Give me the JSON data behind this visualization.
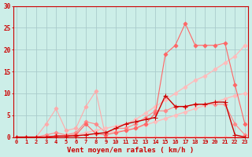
{
  "background_color": "#cceee8",
  "grid_color": "#aacccc",
  "xlabel": "Vent moyen/en rafales ( km/h )",
  "xlabel_color": "#cc0000",
  "tick_color": "#cc0000",
  "x_values": [
    0,
    1,
    2,
    3,
    4,
    5,
    6,
    7,
    8,
    9,
    10,
    11,
    12,
    13,
    14,
    15,
    16,
    17,
    18,
    19,
    20,
    21,
    22,
    23
  ],
  "ylim": [
    0,
    30
  ],
  "yticks": [
    0,
    5,
    10,
    15,
    20,
    25,
    30
  ],
  "series": [
    {
      "name": "line1_lightest",
      "color": "#ffaaaa",
      "lw": 0.8,
      "marker": "D",
      "markersize": 2.5,
      "values": [
        0,
        0,
        0,
        3,
        6.5,
        1.5,
        2,
        7,
        10.5,
        0,
        0,
        0,
        0,
        0,
        0,
        0,
        0,
        0,
        0,
        0,
        0,
        0,
        0,
        0
      ]
    },
    {
      "name": "line2_light_peak",
      "color": "#ff8888",
      "lw": 0.8,
      "marker": "D",
      "markersize": 2.5,
      "values": [
        0,
        0,
        0,
        0.5,
        1,
        0.5,
        1,
        3.5,
        3,
        1,
        2,
        2,
        3,
        4.5,
        6,
        6,
        7,
        7,
        7.5,
        7.5,
        7.5,
        7.5,
        3,
        0.5
      ]
    },
    {
      "name": "line3_trend_upper",
      "color": "#ffbbbb",
      "lw": 1.0,
      "marker": "D",
      "markersize": 2.5,
      "values": [
        0,
        0,
        0,
        0,
        0.2,
        0.3,
        0.5,
        1,
        1.5,
        2,
        2.5,
        3,
        4,
        5.5,
        7,
        8.5,
        10,
        11.5,
        13,
        14,
        15.5,
        17,
        18.5,
        21
      ]
    },
    {
      "name": "line4_trend_lower",
      "color": "#ffbbbb",
      "lw": 1.0,
      "marker": "D",
      "markersize": 2.5,
      "values": [
        0,
        0,
        0,
        0,
        0.1,
        0.15,
        0.25,
        0.5,
        0.75,
        1,
        1.25,
        1.5,
        2,
        2.75,
        3.5,
        4.25,
        5,
        5.75,
        6.5,
        7.25,
        8,
        8.75,
        9.5,
        10
      ]
    },
    {
      "name": "line5_medium_jagged",
      "color": "#ff6666",
      "lw": 0.8,
      "marker": "D",
      "markersize": 2.5,
      "values": [
        0,
        0,
        0,
        0,
        0.3,
        0.3,
        0.5,
        3,
        0.8,
        0.5,
        1,
        1.5,
        2,
        3,
        5.5,
        19,
        21,
        26,
        21,
        21,
        21,
        21.5,
        12,
        3
      ]
    },
    {
      "name": "line6_dark_red",
      "color": "#cc0000",
      "lw": 1.0,
      "marker": "+",
      "markersize": 4,
      "values": [
        0,
        0,
        0,
        0,
        0.2,
        0.2,
        0.3,
        0.5,
        0.8,
        1,
        2,
        3,
        3.5,
        4,
        4.5,
        9.5,
        7,
        7,
        7.5,
        7.5,
        8,
        8,
        0.5,
        0
      ]
    }
  ]
}
